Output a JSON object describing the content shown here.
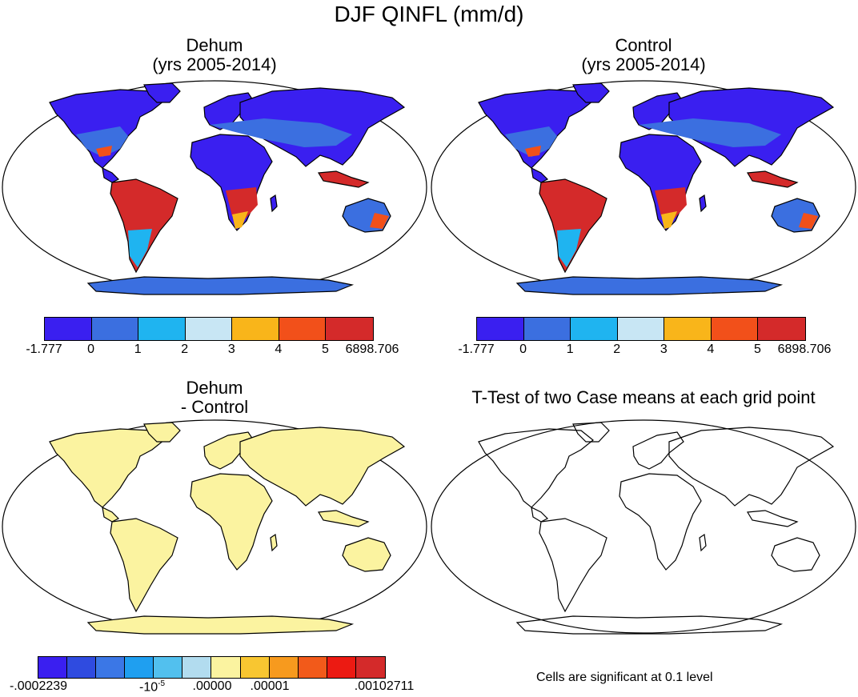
{
  "title": "DJF QINFL (mm/d)",
  "panels": {
    "dehum": {
      "title_line1": "Dehum",
      "title_line2": "(yrs 2005-2014)"
    },
    "control": {
      "title_line1": "Control",
      "title_line2": "(yrs 2005-2014)"
    },
    "diff": {
      "title_line1": "Dehum",
      "title_line2": "- Control"
    },
    "ttest": {
      "title": "T-Test of two Case means at each grid point",
      "note": "Cells are significant at 0.1 level"
    }
  },
  "colorbar_main": {
    "colors": [
      "#3a1ff0",
      "#3b6fe0",
      "#1fb4f0",
      "#c8e6f4",
      "#f9b51a",
      "#f2501a",
      "#d42a2a"
    ],
    "labels": [
      "-1.777",
      "0",
      "1",
      "2",
      "3",
      "4",
      "5",
      "6898.706"
    ]
  },
  "colorbar_diff": {
    "colors": [
      "#3a1ff0",
      "#2f4be0",
      "#3b77e6",
      "#1f9ff0",
      "#52c0ee",
      "#b2dcef",
      "#fbf3a0",
      "#f8c631",
      "#f79a1e",
      "#f25a1a",
      "#ec1a12",
      "#d42a2a"
    ],
    "labels": {
      "min": "-.0002239",
      "neg": "-10",
      "neg_exp": "-5",
      "zero": ".00000",
      "pos": ".00001",
      "max": ".00102711"
    }
  }
}
